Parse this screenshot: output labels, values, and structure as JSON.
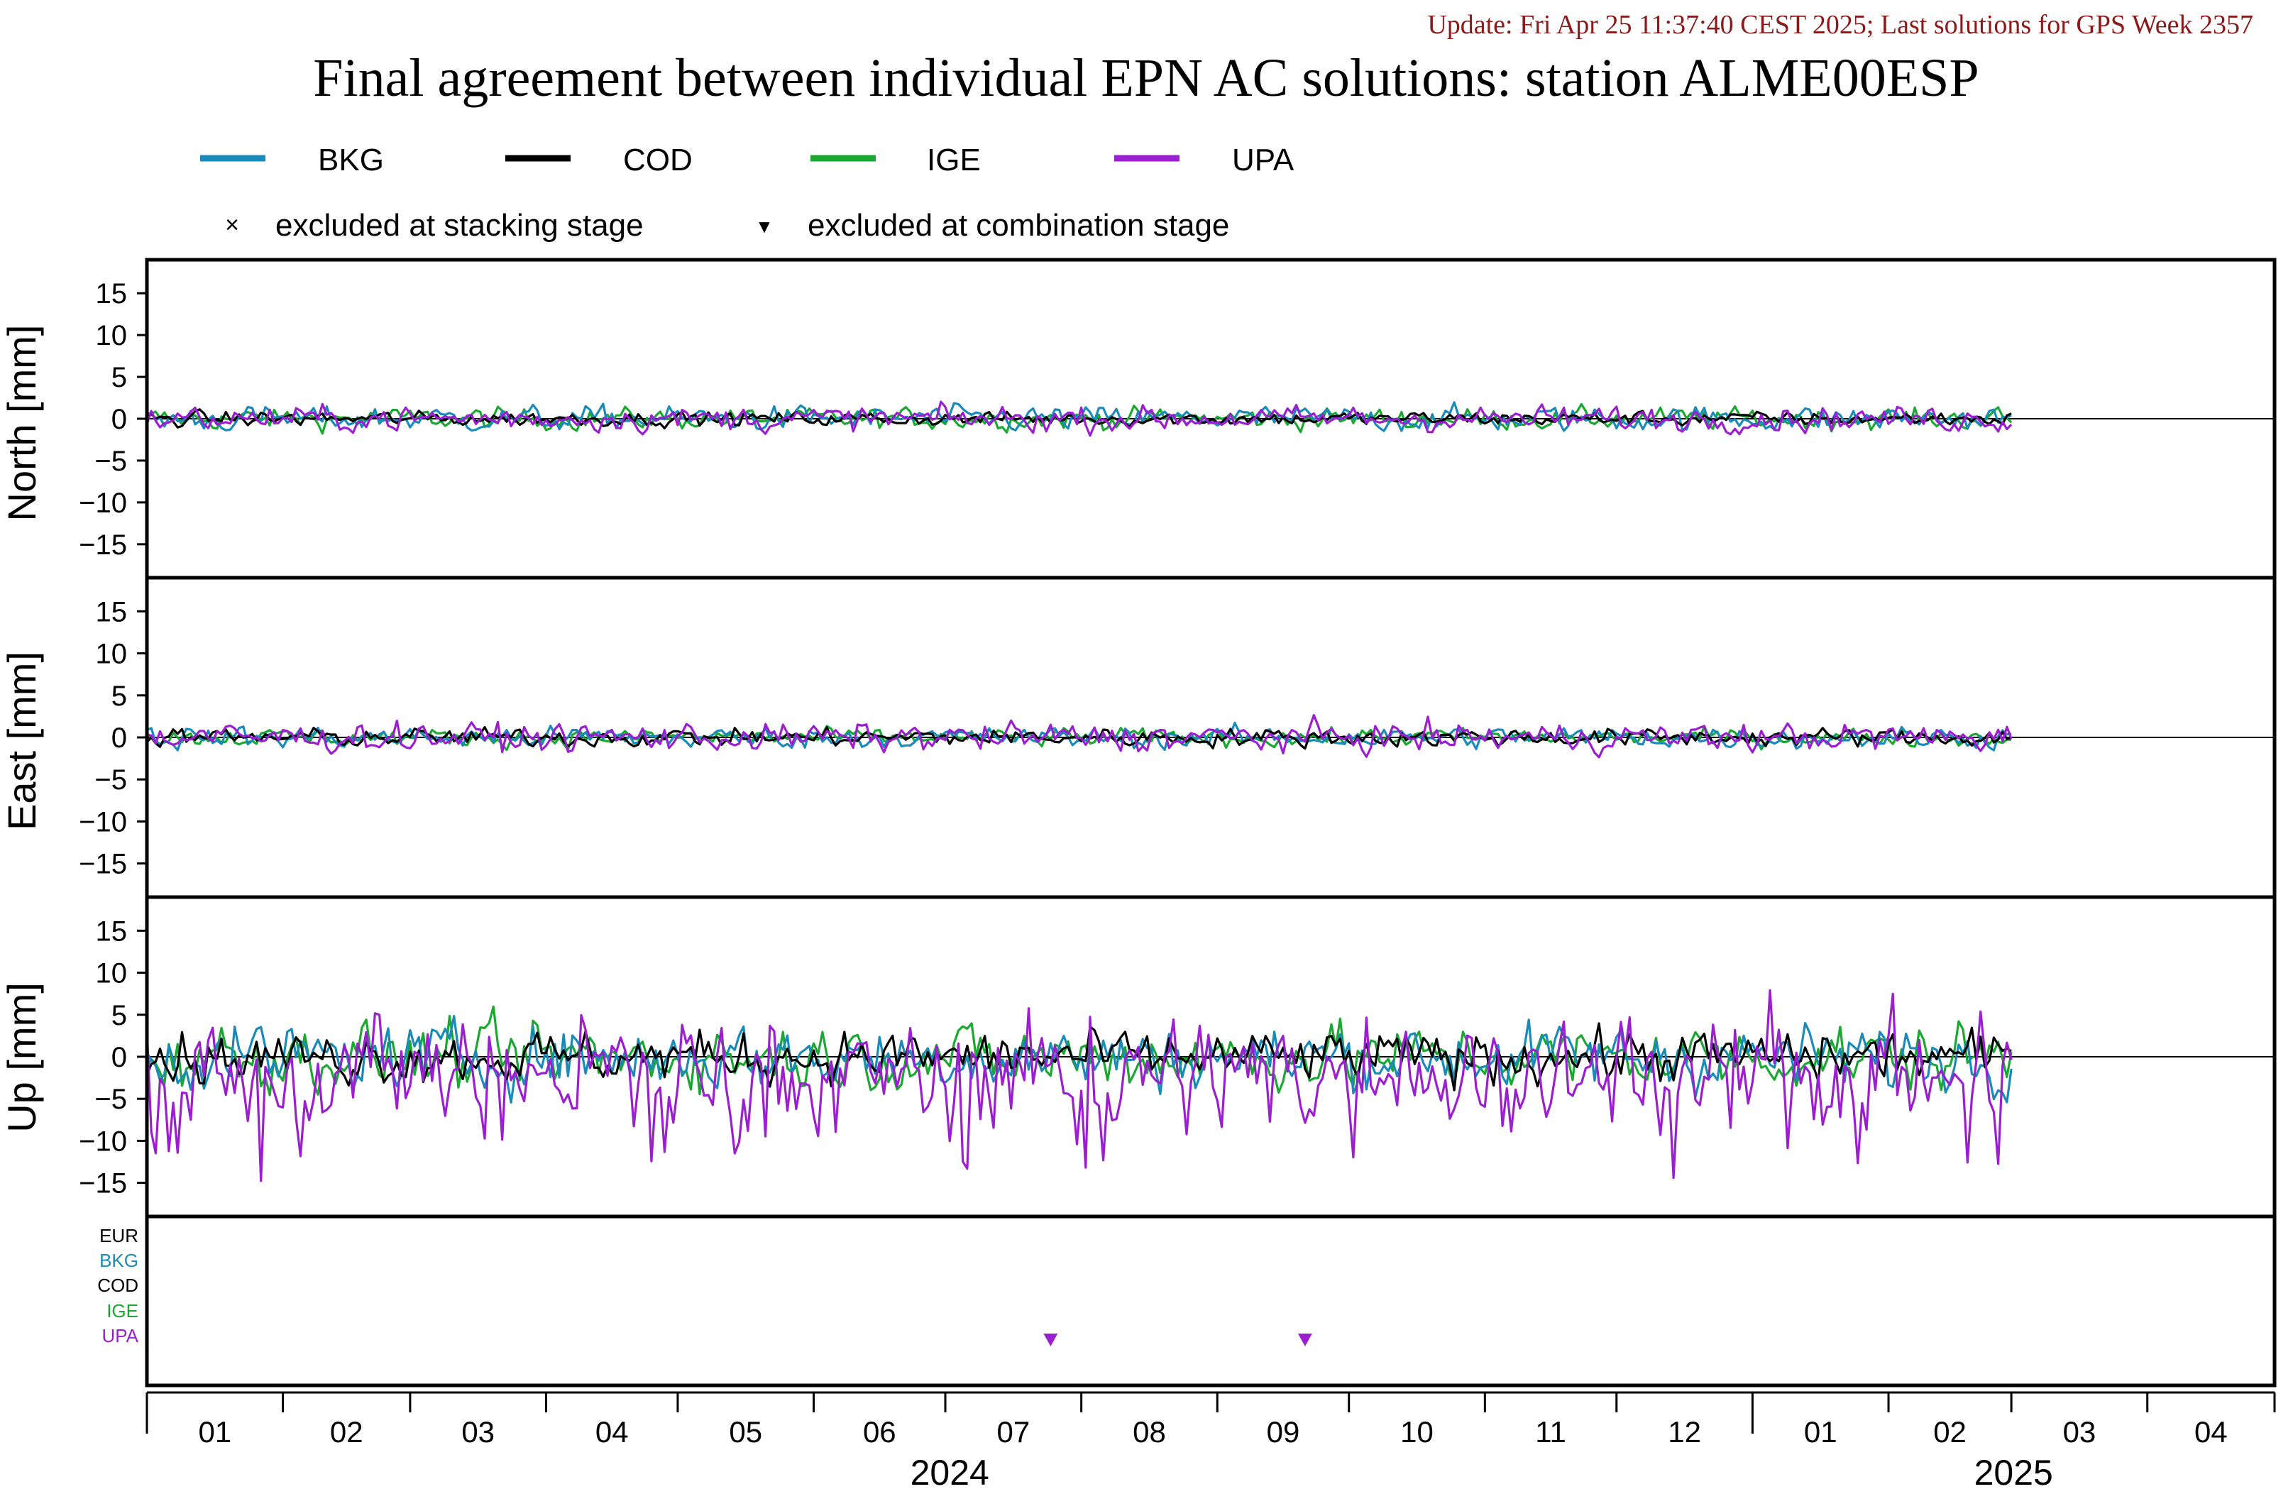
{
  "update_text": "Update: Fri Apr 25 11:37:40 CEST 2025; Last solutions for GPS Week 2357",
  "title": "Final agreement between individual EPN AC solutions: station ALME00ESP",
  "colors": {
    "BKG": "#1a8bb8",
    "COD": "#000000",
    "IGE": "#1aa832",
    "UPA": "#9b1fd0",
    "EUR": "#000000",
    "update": "#8b1a1a",
    "zero_line": "#000000",
    "frame": "#000000"
  },
  "legend": {
    "series": [
      "BKG",
      "COD",
      "IGE",
      "UPA"
    ],
    "markers": [
      {
        "symbol": "×",
        "label": "excluded at stacking stage"
      },
      {
        "symbol": "▼",
        "label": "excluded at combination stage"
      }
    ]
  },
  "chart_data": {
    "type": "line",
    "x_axis": {
      "type": "date",
      "range": [
        "2024-01-01",
        "2025-04-30"
      ],
      "month_ticks": [
        "01",
        "02",
        "03",
        "04",
        "05",
        "06",
        "07",
        "08",
        "09",
        "10",
        "11",
        "12",
        "01",
        "02",
        "03",
        "04"
      ],
      "year_labels": [
        "2024",
        "2025"
      ]
    },
    "panels": [
      {
        "ylabel": "North [mm]",
        "ylim": [
          -19,
          19
        ],
        "yticks": [
          15,
          10,
          5,
          0,
          -5,
          -10,
          -15
        ],
        "ytick_labels": [
          "15",
          "10",
          "5",
          "0",
          "−5",
          "−10",
          "−15"
        ],
        "series_amplitude_mm": {
          "BKG": 0.7,
          "COD": 0.4,
          "IGE": 0.6,
          "UPA": 0.7
        }
      },
      {
        "ylabel": "East [mm]",
        "ylim": [
          -19,
          19
        ],
        "yticks": [
          15,
          10,
          5,
          0,
          -5,
          -10,
          -15
        ],
        "ytick_labels": [
          "15",
          "10",
          "5",
          "0",
          "−5",
          "−10",
          "−15"
        ],
        "series_amplitude_mm": {
          "BKG": 0.6,
          "COD": 0.5,
          "IGE": 0.5,
          "UPA": 0.8
        }
      },
      {
        "ylabel": "Up [mm]",
        "ylim": [
          -19,
          19
        ],
        "yticks": [
          15,
          10,
          5,
          0,
          -5,
          -10,
          -15
        ],
        "ytick_labels": [
          "15",
          "10",
          "5",
          "0",
          "−5",
          "−10",
          "−15"
        ],
        "series_amplitude_mm": {
          "BKG": 1.8,
          "COD": 1.4,
          "IGE": 1.8,
          "UPA": 3.0
        },
        "series_offset_mm": {
          "BKG": 0,
          "COD": 0,
          "IGE": 0,
          "UPA": -2.0
        }
      }
    ],
    "series_end_date": "2025-03-01",
    "exclusion_panel": {
      "labels": [
        "EUR",
        "BKG",
        "COD",
        "IGE",
        "UPA"
      ],
      "combination_exclusions": [
        {
          "ac": "UPA",
          "date": "2024-07-25"
        },
        {
          "ac": "UPA",
          "date": "2024-09-21"
        }
      ]
    }
  }
}
